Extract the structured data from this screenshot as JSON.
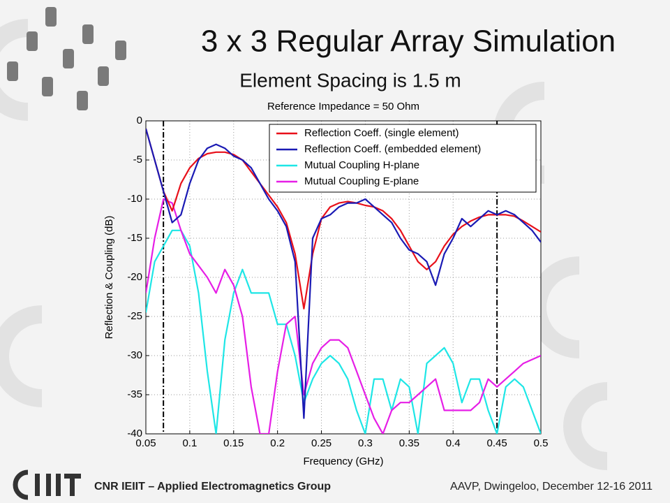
{
  "slide": {
    "title": "3 x 3 Regular Array Simulation",
    "subtitle": "Element Spacing is 1.5 m",
    "footer_left": "CNR IEIIT – Applied Electromagnetics Group",
    "footer_right": "AAVP, Dwingeloo, December 12-16 2011"
  },
  "chart_data": {
    "type": "line",
    "title": "Reference Impedance = 50 Ohm",
    "x_label": "Frequency (GHz)",
    "y_label": "Reflection & Coupling (dB)",
    "x": [
      0.05,
      0.06,
      0.07,
      0.08,
      0.09,
      0.1,
      0.11,
      0.12,
      0.13,
      0.14,
      0.15,
      0.16,
      0.17,
      0.18,
      0.19,
      0.2,
      0.21,
      0.22,
      0.23,
      0.24,
      0.25,
      0.26,
      0.27,
      0.28,
      0.29,
      0.3,
      0.31,
      0.32,
      0.33,
      0.34,
      0.35,
      0.36,
      0.37,
      0.38,
      0.39,
      0.4,
      0.41,
      0.42,
      0.43,
      0.44,
      0.45,
      0.46,
      0.47,
      0.48,
      0.49,
      0.5
    ],
    "series": [
      {
        "name": "Reflection Coeff. (single element)",
        "color": "#e8101a",
        "values": [
          -1,
          -5,
          -9,
          -11.5,
          -8,
          -6,
          -4.8,
          -4.2,
          -4,
          -4,
          -4.3,
          -5,
          -6.5,
          -8,
          -9.5,
          -11,
          -13,
          -17,
          -24,
          -17,
          -12.5,
          -11,
          -10.5,
          -10.3,
          -10.5,
          -10.8,
          -11,
          -11.5,
          -12.5,
          -14,
          -16,
          -18,
          -19,
          -18,
          -16,
          -14.5,
          -13.5,
          -12.8,
          -12.3,
          -12,
          -12,
          -12,
          -12.2,
          -12.8,
          -13.5,
          -14.2
        ]
      },
      {
        "name": "Reflection Coeff. (embedded element)",
        "color": "#1a1ab4",
        "values": [
          -1,
          -5,
          -9,
          -13,
          -12,
          -8,
          -5,
          -3.5,
          -3,
          -3.5,
          -4.5,
          -5,
          -6,
          -8,
          -10,
          -11.5,
          -13.5,
          -18,
          -38,
          -15,
          -12.5,
          -12,
          -11,
          -10.5,
          -10.5,
          -10,
          -11,
          -12,
          -13,
          -15,
          -16.5,
          -17,
          -18,
          -21,
          -17,
          -15,
          -12.5,
          -13.5,
          -12.5,
          -11.5,
          -12,
          -11.5,
          -12,
          -13,
          -14,
          -15.5
        ]
      },
      {
        "name": "Mutual Coupling H-plane",
        "color": "#1ee6e6",
        "values": [
          -24.5,
          -18,
          -16,
          -14,
          -14,
          -16,
          -22,
          -32,
          -40,
          -28,
          -22,
          -19,
          -22,
          -22,
          -22,
          -26,
          -26,
          -30,
          -36,
          -33,
          -31,
          -30,
          -31,
          -33,
          -37,
          -40,
          -33,
          -33,
          -37,
          -33,
          -34,
          -40,
          -31,
          -30,
          -29,
          -31,
          -36,
          -33,
          -33,
          -37,
          -40,
          -34,
          -33,
          -34,
          -37,
          -40
        ]
      },
      {
        "name": "Mutual Coupling E-plane",
        "color": "#e61ee6",
        "values": [
          -22,
          -15,
          -10,
          -10.5,
          -14,
          -17,
          -18.5,
          -20,
          -22,
          -19,
          -21,
          -25,
          -34,
          -40,
          -40,
          -32,
          -26,
          -25,
          -35,
          -31,
          -29,
          -28,
          -28,
          -29,
          -32,
          -35,
          -38,
          -40,
          -37,
          -36,
          -36,
          -35,
          -34,
          -33,
          -37,
          -37,
          -37,
          -37,
          -36,
          -33,
          -34,
          -33,
          -32,
          -31,
          -30.5,
          -30
        ]
      }
    ],
    "vlines": [
      0.07,
      0.45
    ],
    "xlim": [
      0.05,
      0.5
    ],
    "ylim": [
      -40,
      0
    ],
    "xticks": [
      0.05,
      0.1,
      0.15,
      0.2,
      0.25,
      0.3,
      0.35,
      0.4,
      0.45,
      0.5
    ],
    "yticks": [
      0,
      -5,
      -10,
      -15,
      -20,
      -25,
      -30,
      -35,
      -40
    ],
    "grid": true,
    "legend": "upper right"
  }
}
